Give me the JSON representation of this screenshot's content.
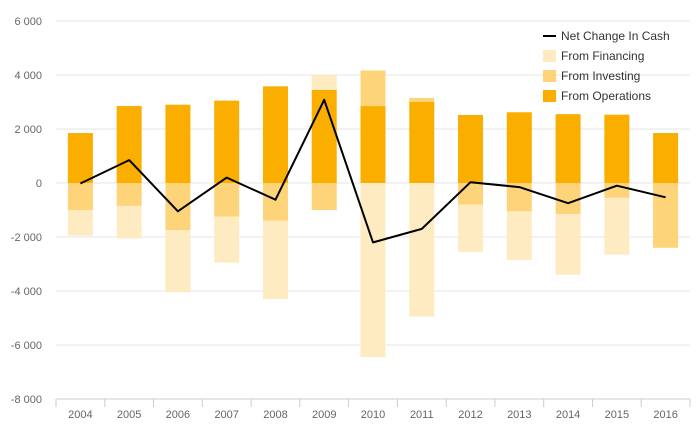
{
  "chart_data": {
    "type": "bar",
    "categories": [
      "2004",
      "2005",
      "2006",
      "2007",
      "2008",
      "2009",
      "2010",
      "2011",
      "2012",
      "2013",
      "2014",
      "2015",
      "2016"
    ],
    "ylim": [
      -8000,
      6000
    ],
    "yticks": [
      6000,
      4000,
      2000,
      0,
      -2000,
      -4000,
      -6000,
      -8000
    ],
    "ytick_labels": [
      "6 000",
      "4 000",
      "2 000",
      "0",
      "-2 000",
      "-4 000",
      "-6 000",
      "-8 000"
    ],
    "grid": true,
    "legend_position": "top-right",
    "stacked": true,
    "series": [
      {
        "name": "From Operations",
        "kind": "bar",
        "color": "#f9ae00",
        "values": [
          1850,
          2850,
          2900,
          3050,
          3580,
          3450,
          2850,
          3000,
          2520,
          2620,
          2550,
          2530,
          1850
        ]
      },
      {
        "name": "From Investing",
        "kind": "bar",
        "color": "#fdd47a",
        "values": [
          -1000,
          -850,
          -1750,
          -1250,
          -1400,
          -1000,
          1320,
          150,
          -800,
          -1050,
          -1150,
          -550,
          -2400
        ]
      },
      {
        "name": "From Financing",
        "kind": "bar",
        "color": "#feebc2",
        "values": [
          -950,
          -1200,
          -2300,
          -1700,
          -2900,
          550,
          -6450,
          -4950,
          -1750,
          -1800,
          -2250,
          -2100,
          0
        ]
      },
      {
        "name": "Net Change In Cash",
        "kind": "line",
        "color": "#000000",
        "values": [
          -20,
          850,
          -1050,
          200,
          -620,
          3080,
          -2200,
          -1700,
          30,
          -150,
          -750,
          -100,
          -530
        ]
      }
    ]
  }
}
